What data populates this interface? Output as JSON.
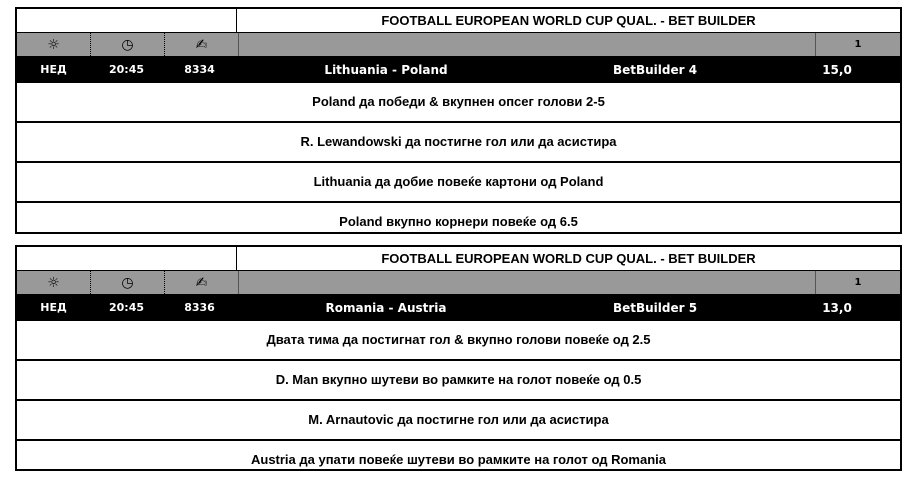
{
  "icons": {
    "day": "sun-icon",
    "time": "clock-icon",
    "code": "signature-icon"
  },
  "events": [
    {
      "title": "FOOTBALL EUROPEAN WORLD CUP QUAL. - BET BUILDER",
      "odd_header": "1",
      "day": "НЕД",
      "time": "20:45",
      "code": "8334",
      "match": "Lithuania - Poland",
      "market": "BetBuilder 4",
      "odd": "15,0",
      "selections": [
        "Poland да победи & вкупнен опсег голови 2-5",
        "R. Lewandowski да постигне гол или да асистира",
        "Lithuania да добие повеќе картони од Poland",
        "Poland вкупно корнери повеќе од 6.5"
      ]
    },
    {
      "title": "FOOTBALL EUROPEAN WORLD CUP QUAL. - BET BUILDER",
      "odd_header": "1",
      "day": "НЕД",
      "time": "20:45",
      "code": "8336",
      "match": "Romania - Austria",
      "market": "BetBuilder 5",
      "odd": "13,0",
      "selections": [
        "Двата тима да постигнат гол & вкупно голови повеќе од 2.5",
        "D. Man вкупно шутеви во рамките на голот повеќе од 0.5",
        "M. Arnautovic да постигне гол или да асистира",
        "Austria да упати повеќе шутеви во рамките на голот од Romania"
      ]
    }
  ]
}
